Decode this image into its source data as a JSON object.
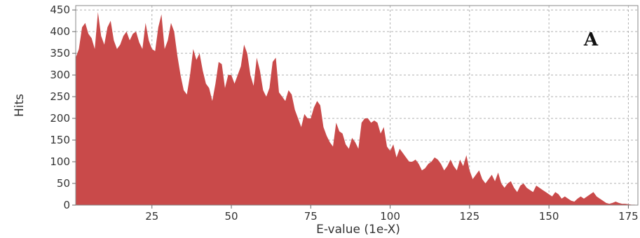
{
  "chart_data": {
    "type": "area",
    "title": "",
    "xlabel": "E-value (1e-X)",
    "ylabel": "Hits",
    "panel_letter": "A",
    "xlim": [
      1,
      178
    ],
    "ylim": [
      0,
      460
    ],
    "xticks": [
      25,
      50,
      75,
      100,
      125,
      150,
      175
    ],
    "yticks": [
      0,
      50,
      100,
      150,
      200,
      250,
      300,
      350,
      400,
      450
    ],
    "grid": true,
    "fill_color": "#c94a4a",
    "series": [
      {
        "x": [
          1,
          2,
          3,
          4,
          5,
          6,
          7,
          8,
          9,
          10,
          11,
          12,
          13,
          14,
          15,
          16,
          17,
          18,
          19,
          20,
          21,
          22,
          23,
          24,
          25,
          26,
          27,
          28,
          29,
          30,
          31,
          32,
          33,
          34,
          35,
          36,
          37,
          38,
          39,
          40,
          41,
          42,
          43,
          44,
          45,
          46,
          47,
          48,
          49,
          50,
          51,
          52,
          53,
          54,
          55,
          56,
          57,
          58,
          59,
          60,
          61,
          62,
          63,
          64,
          65,
          66,
          67,
          68,
          69,
          70,
          71,
          72,
          73,
          74,
          75,
          76,
          77,
          78,
          79,
          80,
          81,
          82,
          83,
          84,
          85,
          86,
          87,
          88,
          89,
          90,
          91,
          92,
          93,
          94,
          95,
          96,
          97,
          98,
          99,
          100,
          101,
          102,
          103,
          104,
          105,
          106,
          107,
          108,
          109,
          110,
          111,
          112,
          113,
          114,
          115,
          116,
          117,
          118,
          119,
          120,
          121,
          122,
          123,
          124,
          125,
          126,
          127,
          128,
          129,
          130,
          131,
          132,
          133,
          134,
          135,
          136,
          137,
          138,
          139,
          140,
          141,
          142,
          143,
          144,
          145,
          146,
          147,
          148,
          149,
          150,
          151,
          152,
          153,
          154,
          155,
          156,
          157,
          158,
          159,
          160,
          161,
          162,
          163,
          164,
          165,
          166,
          167,
          168,
          169,
          170,
          171,
          172,
          173,
          174,
          175,
          176,
          177,
          178
        ],
        "values": [
          340,
          360,
          410,
          420,
          395,
          385,
          360,
          445,
          390,
          370,
          410,
          425,
          380,
          360,
          370,
          390,
          400,
          380,
          395,
          400,
          375,
          360,
          420,
          380,
          360,
          355,
          410,
          440,
          360,
          380,
          420,
          400,
          345,
          300,
          265,
          255,
          300,
          360,
          335,
          350,
          310,
          280,
          270,
          240,
          280,
          330,
          325,
          270,
          300,
          300,
          280,
          300,
          320,
          370,
          350,
          300,
          275,
          340,
          310,
          265,
          250,
          270,
          330,
          340,
          260,
          250,
          240,
          265,
          255,
          220,
          200,
          180,
          210,
          200,
          200,
          225,
          240,
          230,
          180,
          160,
          145,
          135,
          190,
          170,
          165,
          140,
          130,
          155,
          145,
          130,
          190,
          200,
          200,
          190,
          195,
          190,
          165,
          180,
          135,
          125,
          140,
          110,
          130,
          120,
          110,
          100,
          100,
          105,
          95,
          80,
          85,
          95,
          100,
          110,
          105,
          95,
          80,
          90,
          105,
          90,
          80,
          105,
          90,
          115,
          80,
          60,
          70,
          80,
          60,
          50,
          60,
          70,
          55,
          75,
          50,
          40,
          50,
          55,
          40,
          30,
          45,
          50,
          40,
          35,
          30,
          45,
          40,
          35,
          30,
          25,
          20,
          30,
          25,
          15,
          20,
          15,
          10,
          8,
          15,
          20,
          15,
          20,
          25,
          30,
          20,
          15,
          10,
          5,
          3,
          5,
          8,
          5,
          3,
          3,
          2,
          1,
          1,
          0
        ]
      }
    ]
  }
}
